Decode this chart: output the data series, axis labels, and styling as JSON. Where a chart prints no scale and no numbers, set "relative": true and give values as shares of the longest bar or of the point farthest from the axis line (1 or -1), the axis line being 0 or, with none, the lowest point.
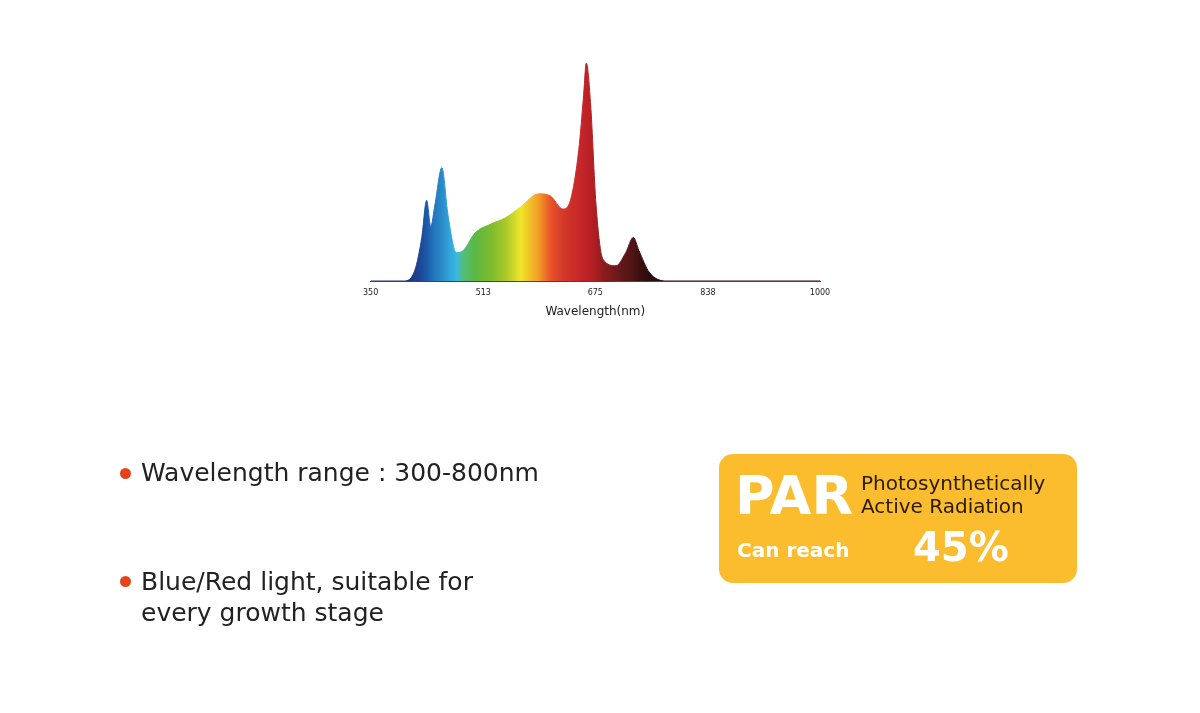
{
  "chart_data": {
    "type": "area",
    "relative": true,
    "xlabel": "Wavelength(nm)",
    "xlim": [
      350,
      1000
    ],
    "xticks": [
      350,
      513,
      675,
      838,
      1000
    ],
    "grid": false,
    "legend": false,
    "x": [
      350,
      399,
      414,
      424,
      431,
      437,
      443,
      453,
      462,
      474,
      484,
      501,
      523,
      545,
      567,
      593,
      610,
      628,
      639,
      651,
      658,
      662,
      668,
      676,
      686,
      705,
      719,
      730,
      738,
      753,
      778,
      1000
    ],
    "series": [
      {
        "values": [
          0,
          0,
          0.05,
          0.2,
          0.37,
          0.25,
          0.35,
          0.52,
          0.3,
          0.13,
          0.14,
          0.22,
          0.26,
          0.29,
          0.34,
          0.4,
          0.39,
          0.33,
          0.37,
          0.6,
          0.85,
          1,
          0.82,
          0.35,
          0.1,
          0.07,
          0.13,
          0.2,
          0.14,
          0.04,
          0,
          0
        ],
        "colors": [
          "#1a2f7a",
          "#1a2f7a",
          "#1f3c8c",
          "#1d4a9c",
          "#1b5aa8",
          "#1e6ab4",
          "#2378bd",
          "#2a8ac8",
          "#2fa0d8",
          "#3ab8e0",
          "#52bf7a",
          "#5ab845",
          "#7cbb2e",
          "#a8c82a",
          "#f0e62a",
          "#f39c26",
          "#e8542a",
          "#d43a2a",
          "#cc3028",
          "#c8282a",
          "#c22428",
          "#bd2226",
          "#b82024",
          "#a81e22",
          "#8e1c1e",
          "#6e1a1a",
          "#5a1616",
          "#4e1414",
          "#3e1010",
          "#2e0c0c",
          "#2e0c0c",
          "#2e0c0c"
        ]
      }
    ],
    "annotations": [
      "Wavelength range : 300-800nm",
      "Blue/Red light, suitable for every growth stage",
      "PAR",
      "Photosynthetically Active Radiation",
      "Can reach",
      "45%"
    ]
  }
}
